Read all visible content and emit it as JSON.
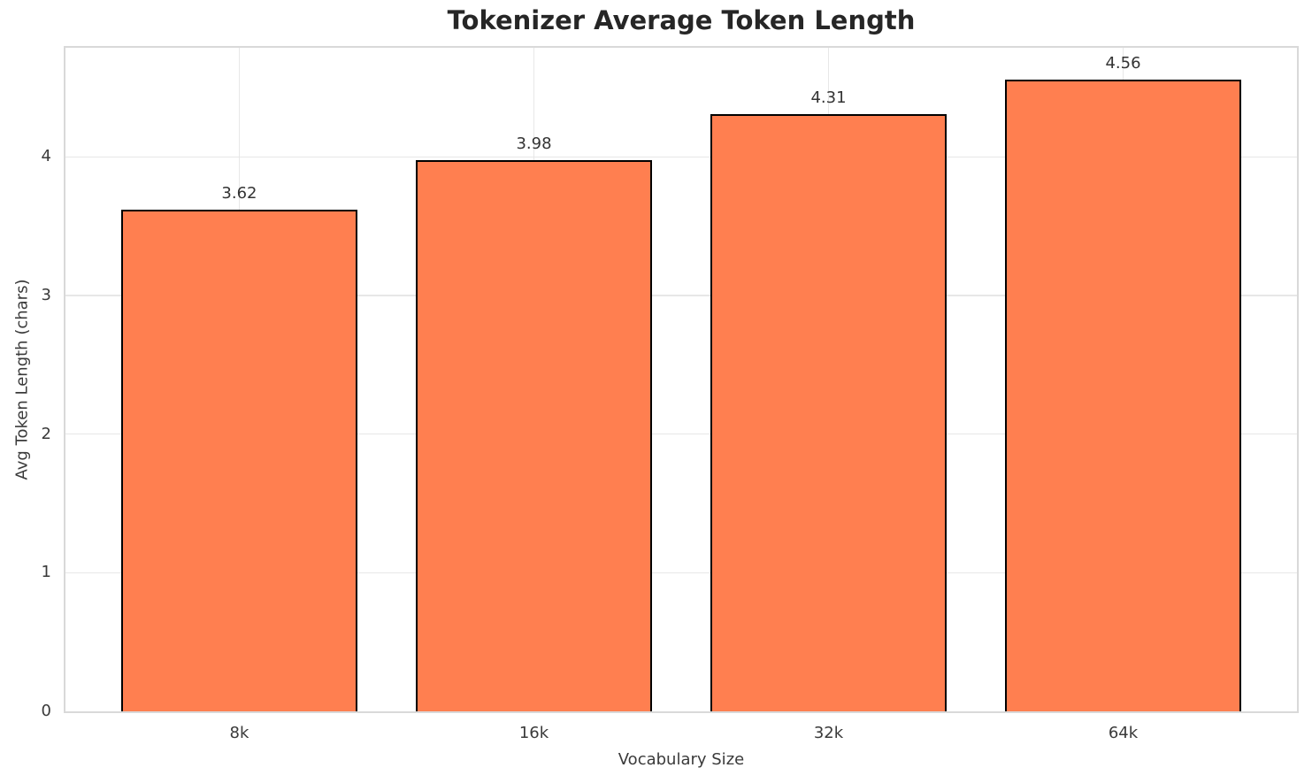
{
  "page": {
    "background": "#ffffff"
  },
  "chart_data": {
    "type": "bar",
    "title": "Tokenizer Average Token Length",
    "xlabel": "Vocabulary Size",
    "ylabel": "Avg Token Length (chars)",
    "categories": [
      "8k",
      "16k",
      "32k",
      "64k"
    ],
    "values": [
      3.62,
      3.98,
      4.31,
      4.56
    ],
    "value_labels": [
      "3.62",
      "3.98",
      "4.31",
      "4.56"
    ],
    "yticks": [
      0,
      1,
      2,
      3,
      4
    ],
    "ytick_labels": [
      "0",
      "1",
      "2",
      "3",
      "4"
    ],
    "ylim": [
      0,
      4.788
    ],
    "grid": true,
    "legend": "none",
    "bar_color": "#FF7F50",
    "bar_edge_color": "#000000",
    "grid_color": "#e7e7e7",
    "spine_color": "#d9d9d9",
    "tick_text_color": "#3a3a3a",
    "value_text_color": "#333333",
    "title_color": "#262626"
  }
}
